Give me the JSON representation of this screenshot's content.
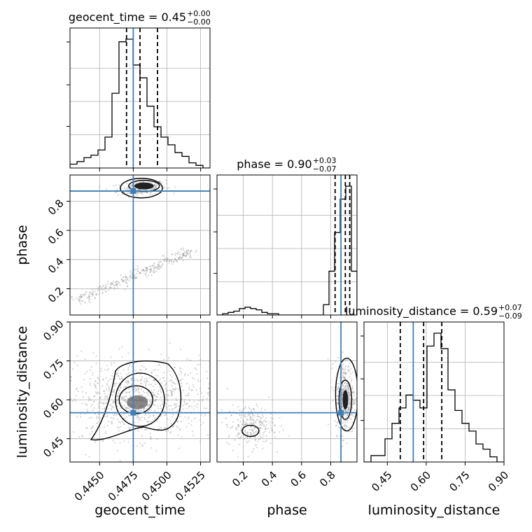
{
  "chart_data": {
    "type": "scatter",
    "subtype": "corner-plot",
    "parameters": [
      {
        "name": "geocent_time",
        "range": [
          0.4428,
          0.4532
        ],
        "ticks": [
          "0.4450",
          "0.4475",
          "0.4500",
          "0.4525"
        ],
        "tick_values": [
          0.445,
          0.4475,
          0.45,
          0.4525
        ],
        "median": 0.448,
        "lower": 0.447,
        "upper": 0.4493,
        "injection": 0.4475,
        "title": {
          "main": "geocent_time = 0.45",
          "sup": "+0.00",
          "sub": "−0.00"
        },
        "hist": [
          0.03,
          0.05,
          0.08,
          0.1,
          0.14,
          0.24,
          0.58,
          0.98,
          1.0,
          0.8,
          0.7,
          0.48,
          0.32,
          0.24,
          0.18,
          0.12,
          0.09,
          0.04,
          0.02,
          0.0
        ]
      },
      {
        "name": "phase",
        "range": [
          0.02,
          0.98
        ],
        "ticks": [
          "0.2",
          "0.4",
          "0.6",
          "0.8"
        ],
        "tick_values": [
          0.2,
          0.4,
          0.6,
          0.8
        ],
        "median": 0.9,
        "lower": 0.83,
        "upper": 0.93,
        "injection": 0.87,
        "title": {
          "main": "phase = 0.90",
          "sup": "+0.03",
          "sub": "−0.07"
        },
        "hist": [
          0.0,
          0.01,
          0.02,
          0.03,
          0.05,
          0.06,
          0.05,
          0.04,
          0.02,
          0.01,
          0.01,
          0.0,
          0.0,
          0.0,
          0.0,
          0.0,
          0.0,
          0.0,
          0.0,
          0.08,
          0.34,
          0.64,
          0.9,
          1.0,
          0.34
        ]
      },
      {
        "name": "luminosity_distance",
        "range": [
          0.36,
          0.9
        ],
        "ticks": [
          "0.45",
          "0.60",
          "0.75",
          "0.90"
        ],
        "tick_values": [
          0.45,
          0.6,
          0.75,
          0.9
        ],
        "median": 0.59,
        "lower": 0.5,
        "upper": 0.66,
        "injection": 0.55,
        "title": {
          "main": "luminosity_distance = 0.59",
          "sup": "+0.07",
          "sub": "−0.09"
        },
        "hist": [
          0.0,
          0.05,
          0.05,
          0.18,
          0.3,
          0.42,
          0.52,
          0.48,
          0.42,
          0.9,
          1.0,
          0.88,
          0.56,
          0.4,
          0.3,
          0.24,
          0.14,
          0.1,
          0.04,
          0.0
        ]
      }
    ],
    "axis_labels": {
      "x": [
        "geocent_time",
        "phase",
        "luminosity_distance"
      ],
      "y": [
        "phase",
        "luminosity_distance"
      ]
    },
    "colors": {
      "truth": "#3f7fb8",
      "hist": "#000000",
      "quantile": "#000000",
      "grid": "#b0b0b0",
      "points": "#888888"
    },
    "grid": true
  }
}
